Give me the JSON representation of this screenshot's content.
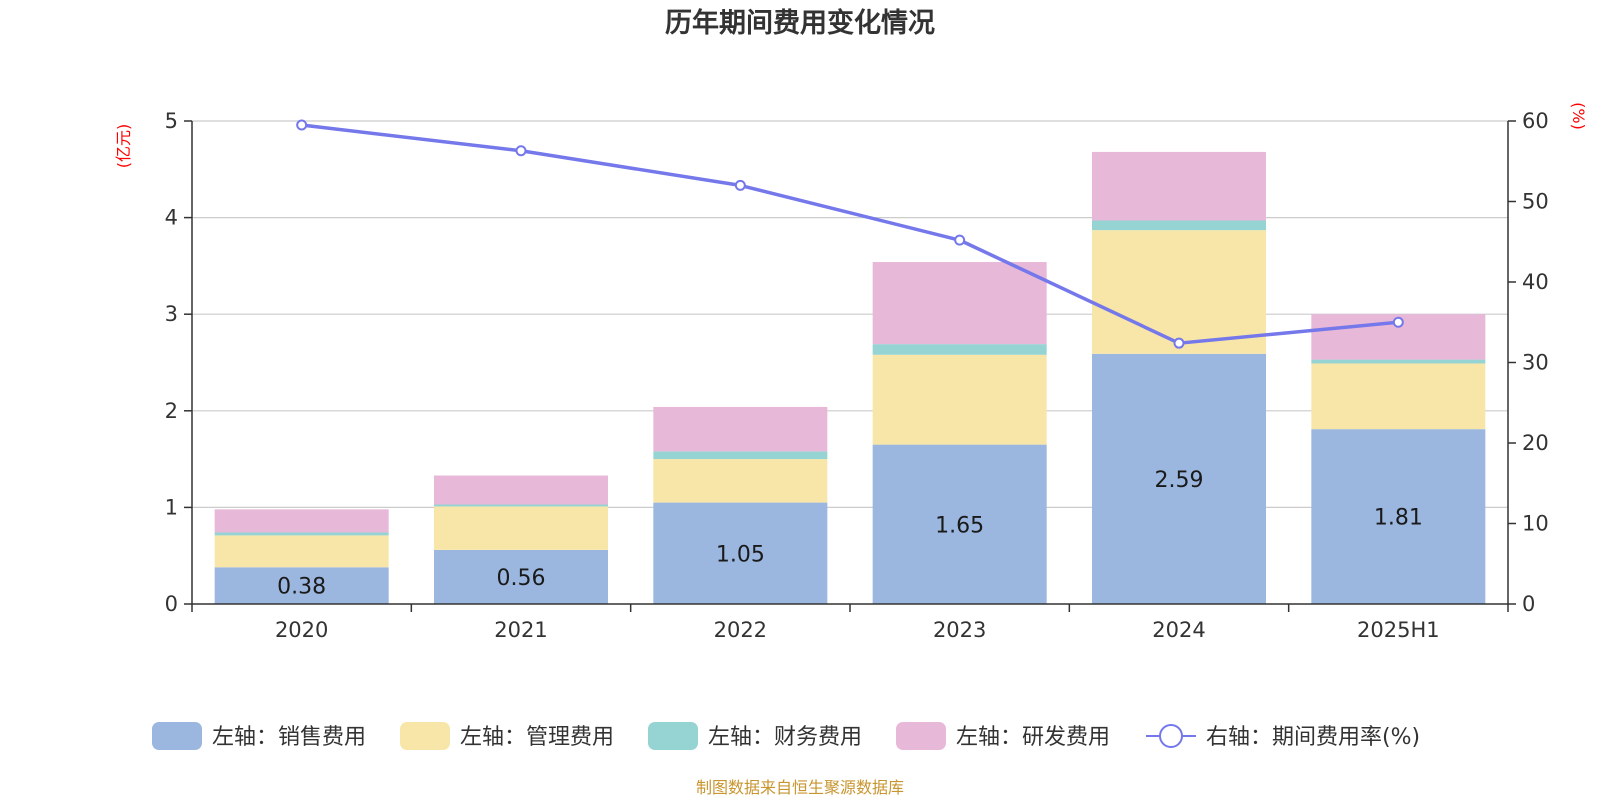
{
  "title": "历年期间费用变化情况",
  "source": "制图数据来自恒生聚源数据库",
  "colors": {
    "sales": "#9bb7e0",
    "admin": "#f8e6a8",
    "finance": "#96d3d3",
    "rd": "#e7b8d8",
    "rate": "#7578ea",
    "unit": "#ff0000",
    "source": "#c8952f"
  },
  "chart_data": {
    "type": "bar",
    "stacked": true,
    "title": "历年期间费用变化情况",
    "categories": [
      "2020",
      "2021",
      "2022",
      "2023",
      "2024",
      "2025H1"
    ],
    "left_axis": {
      "unit": "(亿元)",
      "ylim": [
        0,
        5
      ],
      "ticks": [
        "0",
        "1",
        "2",
        "3",
        "4",
        "5"
      ]
    },
    "right_axis": {
      "unit": "(%)",
      "ylim": [
        0,
        60
      ],
      "ticks": [
        "0",
        "10",
        "20",
        "30",
        "40",
        "50",
        "60"
      ]
    },
    "grid": true,
    "legend_position": "bottom",
    "series": [
      {
        "name": "左轴：销售费用",
        "type": "bar",
        "axis": "left",
        "color_key": "sales",
        "values": [
          0.38,
          0.56,
          1.05,
          1.65,
          2.59,
          1.81
        ],
        "labels": [
          "0.38",
          "0.56",
          "1.05",
          "1.65",
          "2.59",
          "1.81"
        ]
      },
      {
        "name": "左轴：管理费用",
        "type": "bar",
        "axis": "left",
        "color_key": "admin",
        "values": [
          0.33,
          0.45,
          0.45,
          0.93,
          1.28,
          0.68
        ]
      },
      {
        "name": "左轴：财务费用",
        "type": "bar",
        "axis": "left",
        "color_key": "finance",
        "values": [
          0.03,
          0.02,
          0.08,
          0.11,
          0.1,
          0.04
        ]
      },
      {
        "name": "左轴：研发费用",
        "type": "bar",
        "axis": "left",
        "color_key": "rd",
        "values": [
          0.24,
          0.3,
          0.46,
          0.85,
          0.71,
          0.47
        ]
      },
      {
        "name": "右轴：期间费用率(%)",
        "type": "line",
        "axis": "right",
        "color_key": "rate",
        "values": [
          59.5,
          56.3,
          52.0,
          45.2,
          32.4,
          35.0
        ]
      }
    ]
  }
}
